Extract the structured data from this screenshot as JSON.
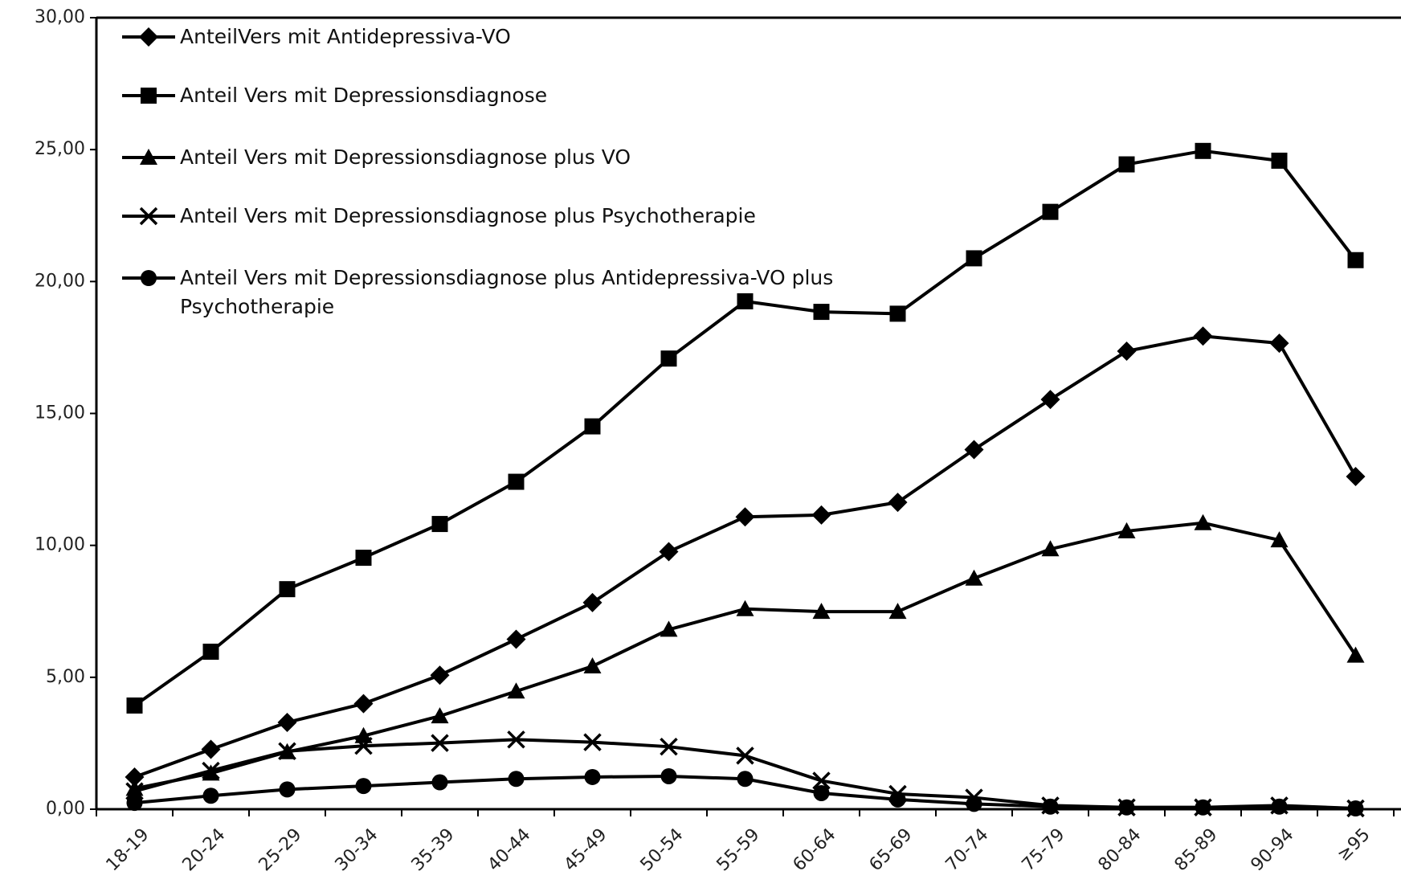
{
  "chart_data": {
    "type": "line",
    "categories": [
      "18-19",
      "20-24",
      "25-29",
      "30-34",
      "35-39",
      "40-44",
      "45-49",
      "50-54",
      "55-59",
      "60-64",
      "65-69",
      "70-74",
      "75-79",
      "80-84",
      "85-89",
      "90-94",
      "≥95"
    ],
    "ylim": [
      0,
      30
    ],
    "yticks": [
      {
        "value": 0,
        "label": "0,00"
      },
      {
        "value": 5,
        "label": "5,00"
      },
      {
        "value": 10,
        "label": "10,00"
      },
      {
        "value": 15,
        "label": "15,00"
      },
      {
        "value": 20,
        "label": "20,00"
      },
      {
        "value": 25,
        "label": "25,00"
      },
      {
        "value": 30,
        "label": "30,00"
      }
    ],
    "legend": "upper left",
    "series": [
      {
        "name": "AnteilVers mit Antidepressiva-VO",
        "color": "#000000",
        "marker": "diamond",
        "values": [
          1.22,
          2.27,
          3.29,
          4.0,
          5.08,
          6.44,
          7.83,
          9.76,
          11.08,
          11.15,
          11.63,
          13.63,
          15.53,
          17.36,
          17.93,
          17.66,
          12.61
        ]
      },
      {
        "name": "Anteil Vers mit Depressionsdiagnose",
        "color": "#000000",
        "marker": "square",
        "values": [
          3.93,
          5.97,
          8.34,
          9.53,
          10.81,
          12.41,
          14.51,
          17.08,
          19.25,
          18.85,
          18.78,
          20.88,
          22.64,
          24.44,
          24.95,
          24.58,
          20.81
        ]
      },
      {
        "name": "Anteil Vers mit Depressionsdiagnose plus VO",
        "color": "#000000",
        "marker": "triangle",
        "values": [
          0.78,
          1.36,
          2.17,
          2.78,
          3.53,
          4.47,
          5.42,
          6.81,
          7.59,
          7.49,
          7.49,
          8.75,
          9.86,
          10.54,
          10.85,
          10.2,
          5.83
        ]
      },
      {
        "name": "Anteil Vers mit Depressionsdiagnose plus Psychotherapie",
        "color": "#000000",
        "marker": "x",
        "values": [
          0.68,
          1.46,
          2.2,
          2.4,
          2.51,
          2.64,
          2.54,
          2.37,
          2.03,
          1.08,
          0.58,
          0.44,
          0.14,
          0.07,
          0.07,
          0.14,
          0.03
        ]
      },
      {
        "name": "Anteil Vers mit Depressionsdiagnose plus Antidepressiva-VO plus Psychotherapie",
        "color": "#000000",
        "marker": "circle",
        "values": [
          0.24,
          0.51,
          0.75,
          0.88,
          1.02,
          1.15,
          1.22,
          1.25,
          1.15,
          0.61,
          0.37,
          0.2,
          0.1,
          0.07,
          0.07,
          0.1,
          0.03
        ]
      }
    ]
  }
}
